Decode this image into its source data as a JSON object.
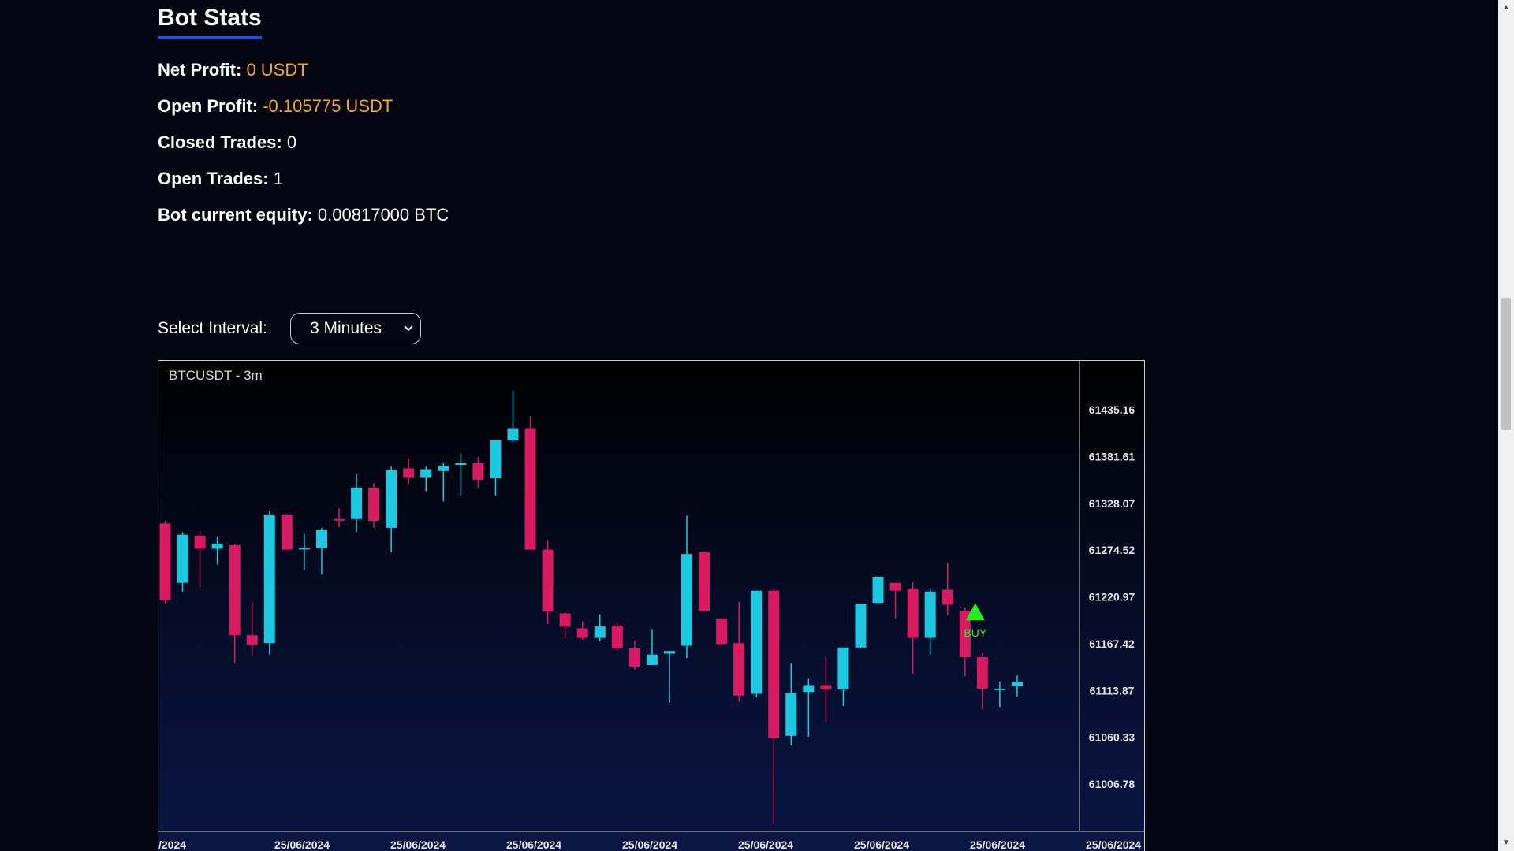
{
  "stats": {
    "title": "Bot Stats",
    "net_profit": {
      "label": "Net Profit:",
      "value": "0 USDT"
    },
    "open_profit": {
      "label": "Open Profit:",
      "value": "-0.105775 USDT"
    },
    "closed_trades": {
      "label": "Closed Trades:",
      "value": "0"
    },
    "open_trades": {
      "label": "Open Trades:",
      "value": "1"
    },
    "equity": {
      "label": "Bot current equity:",
      "value": "0.00817000 BTC"
    }
  },
  "interval": {
    "label": "Select Interval:",
    "selected": "3 Minutes"
  },
  "chart_data": {
    "type": "candlestick",
    "title": "BTCUSDT - 3m",
    "y_ticks": [
      "61435.16",
      "61381.61",
      "61328.07",
      "61274.52",
      "61220.97",
      "61167.42",
      "61113.87",
      "61060.33",
      "61006.78"
    ],
    "x_ticks": [
      "/2024",
      "25/06/2024",
      "25/06/2024",
      "25/06/2024",
      "25/06/2024",
      "25/06/2024",
      "25/06/2024",
      "25/06/2024",
      "25/06/2024"
    ],
    "colors": {
      "up": "#1ec8e0",
      "down": "#d81b60",
      "marker": "#22ee22"
    },
    "candles": [
      {
        "o": 61305,
        "h": 61308,
        "c": 61217,
        "l": 61213
      },
      {
        "o": 61237,
        "h": 61295,
        "c": 61292,
        "l": 61227
      },
      {
        "o": 61291,
        "h": 61296,
        "c": 61276,
        "l": 61232
      },
      {
        "o": 61276,
        "h": 61290,
        "c": 61282,
        "l": 61258
      },
      {
        "o": 61280,
        "h": 61282,
        "c": 61177,
        "l": 61145
      },
      {
        "o": 61177,
        "h": 61215,
        "c": 61166,
        "l": 61154
      },
      {
        "o": 61168,
        "h": 61319,
        "c": 61315,
        "l": 61155
      },
      {
        "o": 61315,
        "h": 61316,
        "c": 61275,
        "l": 61275
      },
      {
        "o": 61276,
        "h": 61293,
        "c": 61277,
        "l": 61252
      },
      {
        "o": 61277,
        "h": 61300,
        "c": 61298,
        "l": 61247
      },
      {
        "o": 61310,
        "h": 61322,
        "c": 61309,
        "l": 61301
      },
      {
        "o": 61310,
        "h": 61362,
        "c": 61346,
        "l": 61295
      },
      {
        "o": 61346,
        "h": 61351,
        "c": 61308,
        "l": 61300
      },
      {
        "o": 61300,
        "h": 61370,
        "c": 61366,
        "l": 61272
      },
      {
        "o": 61368,
        "h": 61379,
        "c": 61358,
        "l": 61350
      },
      {
        "o": 61358,
        "h": 61370,
        "c": 61367,
        "l": 61342
      },
      {
        "o": 61365,
        "h": 61374,
        "c": 61371,
        "l": 61330
      },
      {
        "o": 61372,
        "h": 61385,
        "c": 61374,
        "l": 61337
      },
      {
        "o": 61374,
        "h": 61381,
        "c": 61355,
        "l": 61346
      },
      {
        "o": 61357,
        "h": 61396,
        "c": 61400,
        "l": 61337
      },
      {
        "o": 61400,
        "h": 61457,
        "c": 61414,
        "l": 61397
      },
      {
        "o": 61414,
        "h": 61428,
        "c": 61275,
        "l": 61275
      },
      {
        "o": 61275,
        "h": 61286,
        "c": 61204,
        "l": 61190
      },
      {
        "o": 61202,
        "h": 61203,
        "c": 61187,
        "l": 61173
      },
      {
        "o": 61185,
        "h": 61193,
        "c": 61174,
        "l": 61172
      },
      {
        "o": 61174,
        "h": 61201,
        "c": 61187,
        "l": 61170
      },
      {
        "o": 61188,
        "h": 61192,
        "c": 61162,
        "l": 61160
      },
      {
        "o": 61162,
        "h": 61171,
        "c": 61141,
        "l": 61138
      },
      {
        "o": 61143,
        "h": 61184,
        "c": 61155,
        "l": 61143
      },
      {
        "o": 61156,
        "h": 61157,
        "c": 61159,
        "l": 61100
      },
      {
        "o": 61165,
        "h": 61314,
        "c": 61270,
        "l": 61151
      },
      {
        "o": 61272,
        "h": 61273,
        "c": 61205,
        "l": 61205
      },
      {
        "o": 61196,
        "h": 61197,
        "c": 61167,
        "l": 61167
      },
      {
        "o": 61168,
        "h": 61215,
        "c": 61108,
        "l": 61101
      },
      {
        "o": 61110,
        "h": 61226,
        "c": 61228,
        "l": 61106
      },
      {
        "o": 61228,
        "h": 61230,
        "c": 61060,
        "l": 60960
      },
      {
        "o": 61062,
        "h": 61145,
        "c": 61111,
        "l": 61051
      },
      {
        "o": 61112,
        "h": 61127,
        "c": 61120,
        "l": 61061
      },
      {
        "o": 61120,
        "h": 61152,
        "c": 61115,
        "l": 61078
      },
      {
        "o": 61115,
        "h": 61163,
        "c": 61163,
        "l": 61096
      },
      {
        "o": 61163,
        "h": 61210,
        "c": 61213,
        "l": 61162
      },
      {
        "o": 61214,
        "h": 61242,
        "c": 61244,
        "l": 61212
      },
      {
        "o": 61237,
        "h": 61237,
        "c": 61228,
        "l": 61196
      },
      {
        "o": 61230,
        "h": 61238,
        "c": 61174,
        "l": 61133
      },
      {
        "o": 61174,
        "h": 61231,
        "c": 61227,
        "l": 61155
      },
      {
        "o": 61229,
        "h": 61260,
        "c": 61212,
        "l": 61200
      },
      {
        "o": 61205,
        "h": 61209,
        "c": 61152,
        "l": 61130
      },
      {
        "o": 61152,
        "h": 61157,
        "c": 61116,
        "l": 61092
      },
      {
        "o": 61116,
        "h": 61124,
        "c": 61116,
        "l": 61095
      },
      {
        "o": 61119,
        "h": 61131,
        "c": 61124,
        "l": 61107
      }
    ],
    "markers": [
      {
        "index": 46,
        "label": "BUY",
        "side": "buy"
      }
    ]
  }
}
